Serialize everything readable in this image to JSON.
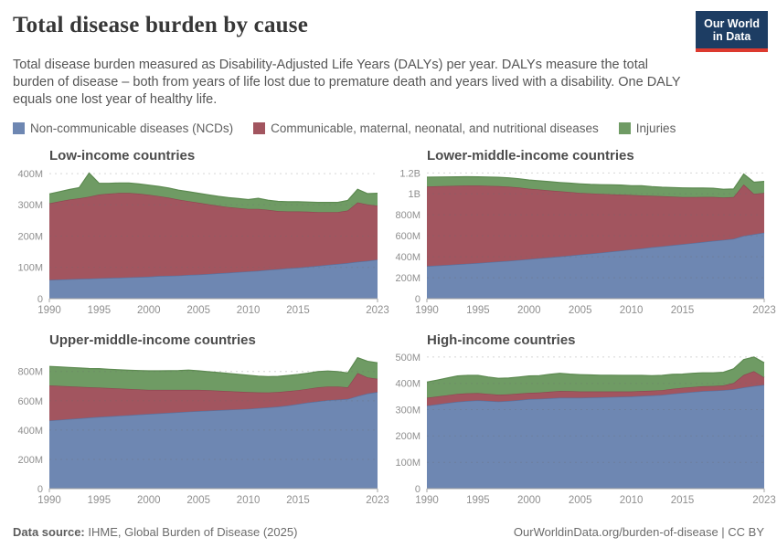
{
  "header": {
    "title": "Total disease burden by cause",
    "logo_line1": "Our World",
    "logo_line2": "in Data"
  },
  "subtitle": "Total disease burden measured as Disability-Adjusted Life Years (DALYs) per year. DALYs measure the total burden of disease – both from years of life lost due to premature death and years lived with a disability. One DALY equals one lost year of healthy life.",
  "colors": {
    "navy": "#1d3d63",
    "red_accent": "#dc3a2f",
    "axis": "#a5a5a5",
    "grid": "#6b6b6b",
    "tick_label": "#8f8f8f"
  },
  "legend": [
    {
      "key": "ncds",
      "label": "Non-communicable diseases (NCDs)",
      "color": "#6e87b2",
      "line_color": "#56719f"
    },
    {
      "key": "communicable",
      "label": "Communicable, maternal, neonatal, and nutritional diseases",
      "color": "#a2555f",
      "line_color": "#8e4450"
    },
    {
      "key": "injuries",
      "label": "Injuries",
      "color": "#6f9b64",
      "line_color": "#5c8a50"
    }
  ],
  "footer": {
    "source_label": "Data source:",
    "source_text": " IHME, Global Burden of Disease (2025)",
    "right_text": "OurWorldinData.org/burden-of-disease | CC BY"
  },
  "chart_data": [
    {
      "type": "area",
      "stacked": true,
      "title": "Low-income countries",
      "unit": "DALYs per year (values in millions)",
      "grid": true,
      "legend_position": "top-of-page",
      "years": [
        1990,
        1991,
        1992,
        1993,
        1994,
        1995,
        1996,
        1997,
        1998,
        1999,
        2000,
        2001,
        2002,
        2003,
        2004,
        2005,
        2006,
        2007,
        2008,
        2009,
        2010,
        2011,
        2012,
        2013,
        2014,
        2015,
        2016,
        2017,
        2018,
        2019,
        2020,
        2021,
        2022,
        2023
      ],
      "xticks": [
        1990,
        1995,
        2000,
        2005,
        2010,
        2015,
        2023
      ],
      "ylim": [
        0,
        406
      ],
      "yticks": [
        {
          "v": 0,
          "label": "0"
        },
        {
          "v": 100,
          "label": "100M"
        },
        {
          "v": 200,
          "label": "200M"
        },
        {
          "v": 300,
          "label": "300M"
        },
        {
          "v": 400,
          "label": "400M"
        }
      ],
      "series": [
        {
          "name": "Non-communicable diseases (NCDs)",
          "values": [
            60,
            61,
            62,
            63,
            64,
            65,
            66,
            67,
            68,
            69,
            70,
            72,
            73,
            74,
            76,
            77,
            79,
            81,
            83,
            85,
            87,
            89,
            92,
            94,
            97,
            99,
            102,
            105,
            108,
            111,
            114,
            118,
            121,
            125
          ]
        },
        {
          "name": "Communicable, maternal, neonatal, and nutritional diseases",
          "values": [
            245,
            250,
            255,
            258,
            262,
            268,
            270,
            271,
            270,
            267,
            262,
            256,
            250,
            243,
            236,
            230,
            223,
            216,
            210,
            205,
            200,
            198,
            192,
            186,
            182,
            180,
            176,
            172,
            169,
            166,
            168,
            190,
            180,
            172
          ]
        },
        {
          "name": "Injuries",
          "values": [
            30,
            31,
            32,
            34,
            76,
            36,
            33,
            32,
            32,
            31,
            31,
            31,
            31,
            30,
            30,
            30,
            30,
            30,
            30,
            30,
            30,
            34,
            31,
            31,
            31,
            31,
            31,
            31,
            31,
            31,
            32,
            42,
            35,
            40
          ]
        }
      ]
    },
    {
      "type": "area",
      "stacked": true,
      "title": "Lower-middle-income countries",
      "unit": "DALYs per year (values in millions)",
      "grid": true,
      "legend_position": "top-of-page",
      "years": [
        1990,
        1991,
        1992,
        1993,
        1994,
        1995,
        1996,
        1997,
        1998,
        1999,
        2000,
        2001,
        2002,
        2003,
        2004,
        2005,
        2006,
        2007,
        2008,
        2009,
        2010,
        2011,
        2012,
        2013,
        2014,
        2015,
        2016,
        2017,
        2018,
        2019,
        2020,
        2021,
        2022,
        2023
      ],
      "xticks": [
        1990,
        1995,
        2000,
        2005,
        2010,
        2015,
        2023
      ],
      "ylim": [
        0,
        1212
      ],
      "yticks": [
        {
          "v": 0,
          "label": "0"
        },
        {
          "v": 200,
          "label": "200M"
        },
        {
          "v": 400,
          "label": "400M"
        },
        {
          "v": 600,
          "label": "600M"
        },
        {
          "v": 800,
          "label": "800M"
        },
        {
          "v": 1000,
          "label": "1B"
        },
        {
          "v": 1200,
          "label": "1.2B"
        }
      ],
      "series": [
        {
          "name": "Non-communicable diseases (NCDs)",
          "values": [
            310,
            316,
            322,
            328,
            334,
            340,
            347,
            354,
            361,
            369,
            377,
            385,
            393,
            402,
            411,
            420,
            429,
            439,
            449,
            459,
            469,
            479,
            490,
            500,
            510,
            520,
            530,
            541,
            551,
            561,
            571,
            600,
            615,
            630
          ]
        },
        {
          "name": "Communicable, maternal, neonatal, and nutritional diseases",
          "values": [
            760,
            757,
            754,
            750,
            746,
            740,
            730,
            720,
            708,
            692,
            673,
            657,
            640,
            623,
            607,
            590,
            576,
            562,
            548,
            534,
            521,
            506,
            492,
            478,
            464,
            450,
            440,
            430,
            420,
            404,
            399,
            490,
            385,
            380
          ]
        },
        {
          "name": "Injuries",
          "values": [
            90,
            88,
            86,
            85,
            84,
            83,
            84,
            85,
            85,
            84,
            83,
            83,
            84,
            84,
            85,
            86,
            86,
            87,
            90,
            92,
            88,
            94,
            88,
            86,
            87,
            88,
            86,
            85,
            83,
            80,
            77,
            100,
            112,
            110
          ]
        }
      ]
    },
    {
      "type": "area",
      "stacked": true,
      "title": "Upper-middle-income countries",
      "unit": "DALYs per year (values in millions)",
      "grid": true,
      "legend_position": "top-of-page",
      "years": [
        1990,
        1991,
        1992,
        1993,
        1994,
        1995,
        1996,
        1997,
        1998,
        1999,
        2000,
        2001,
        2002,
        2003,
        2004,
        2005,
        2006,
        2007,
        2008,
        2009,
        2010,
        2011,
        2012,
        2013,
        2014,
        2015,
        2016,
        2017,
        2018,
        2019,
        2020,
        2021,
        2022,
        2023
      ],
      "xticks": [
        1990,
        1995,
        2000,
        2005,
        2010,
        2015,
        2023
      ],
      "ylim": [
        0,
        905
      ],
      "yticks": [
        {
          "v": 0,
          "label": "0"
        },
        {
          "v": 200,
          "label": "200M"
        },
        {
          "v": 400,
          "label": "400M"
        },
        {
          "v": 600,
          "label": "600M"
        },
        {
          "v": 800,
          "label": "800M"
        }
      ],
      "series": [
        {
          "name": "Non-communicable diseases (NCDs)",
          "values": [
            465,
            470,
            475,
            480,
            485,
            490,
            494,
            498,
            502,
            506,
            510,
            514,
            518,
            522,
            526,
            530,
            533,
            536,
            539,
            542,
            545,
            550,
            555,
            560,
            568,
            578,
            588,
            596,
            604,
            608,
            612,
            632,
            650,
            660
          ]
        },
        {
          "name": "Communicable, maternal, neonatal, and nutritional diseases",
          "values": [
            240,
            232,
            224,
            216,
            208,
            200,
            193,
            186,
            179,
            172,
            165,
            161,
            157,
            153,
            149,
            145,
            139,
            133,
            127,
            121,
            115,
            108,
            102,
            100,
            98,
            95,
            94,
            96,
            94,
            90,
            80,
            158,
            110,
            90
          ]
        },
        {
          "name": "Injuries",
          "values": [
            130,
            130,
            129,
            129,
            128,
            130,
            129,
            128,
            128,
            129,
            130,
            130,
            131,
            132,
            135,
            130,
            127,
            124,
            121,
            118,
            115,
            111,
            108,
            107,
            107,
            107,
            107,
            108,
            106,
            102,
            98,
            105,
            110,
            110
          ]
        }
      ]
    },
    {
      "type": "area",
      "stacked": true,
      "title": "High-income countries",
      "unit": "DALYs per year (values in millions)",
      "grid": true,
      "legend_position": "top-of-page",
      "years": [
        1990,
        1991,
        1992,
        1993,
        1994,
        1995,
        1996,
        1997,
        1998,
        1999,
        2000,
        2001,
        2002,
        2003,
        2004,
        2005,
        2006,
        2007,
        2008,
        2009,
        2010,
        2011,
        2012,
        2013,
        2014,
        2015,
        2016,
        2017,
        2018,
        2019,
        2020,
        2021,
        2022,
        2023
      ],
      "xticks": [
        1990,
        1995,
        2000,
        2005,
        2010,
        2015,
        2023
      ],
      "ylim": [
        0,
        503
      ],
      "yticks": [
        {
          "v": 0,
          "label": "0"
        },
        {
          "v": 100,
          "label": "100M"
        },
        {
          "v": 200,
          "label": "200M"
        },
        {
          "v": 300,
          "label": "300M"
        },
        {
          "v": 400,
          "label": "400M"
        },
        {
          "v": 500,
          "label": "500M"
        }
      ],
      "series": [
        {
          "name": "Non-communicable diseases (NCDs)",
          "values": [
            315,
            320,
            325,
            330,
            333,
            335,
            333,
            331,
            333,
            336,
            340,
            341,
            343,
            345,
            345,
            345,
            346,
            347,
            348,
            349,
            350,
            352,
            354,
            356,
            360,
            364,
            367,
            370,
            372,
            374,
            377,
            384,
            390,
            394
          ]
        },
        {
          "name": "Communicable, maternal, neonatal, and nutritional diseases",
          "values": [
            30,
            30,
            30,
            30,
            29,
            28,
            27,
            26,
            25,
            25,
            24,
            24,
            25,
            26,
            25,
            24,
            23,
            22,
            21,
            20,
            19,
            19,
            18,
            18,
            19,
            19,
            19,
            19,
            18,
            18,
            24,
            48,
            56,
            28
          ]
        },
        {
          "name": "Injuries",
          "values": [
            60,
            62,
            65,
            68,
            68,
            67,
            64,
            62,
            62,
            63,
            64,
            64,
            66,
            67,
            65,
            64,
            63,
            62,
            62,
            61,
            61,
            59,
            57,
            56,
            55,
            52,
            52,
            51,
            50,
            50,
            54,
            58,
            54,
            56
          ]
        }
      ]
    }
  ]
}
